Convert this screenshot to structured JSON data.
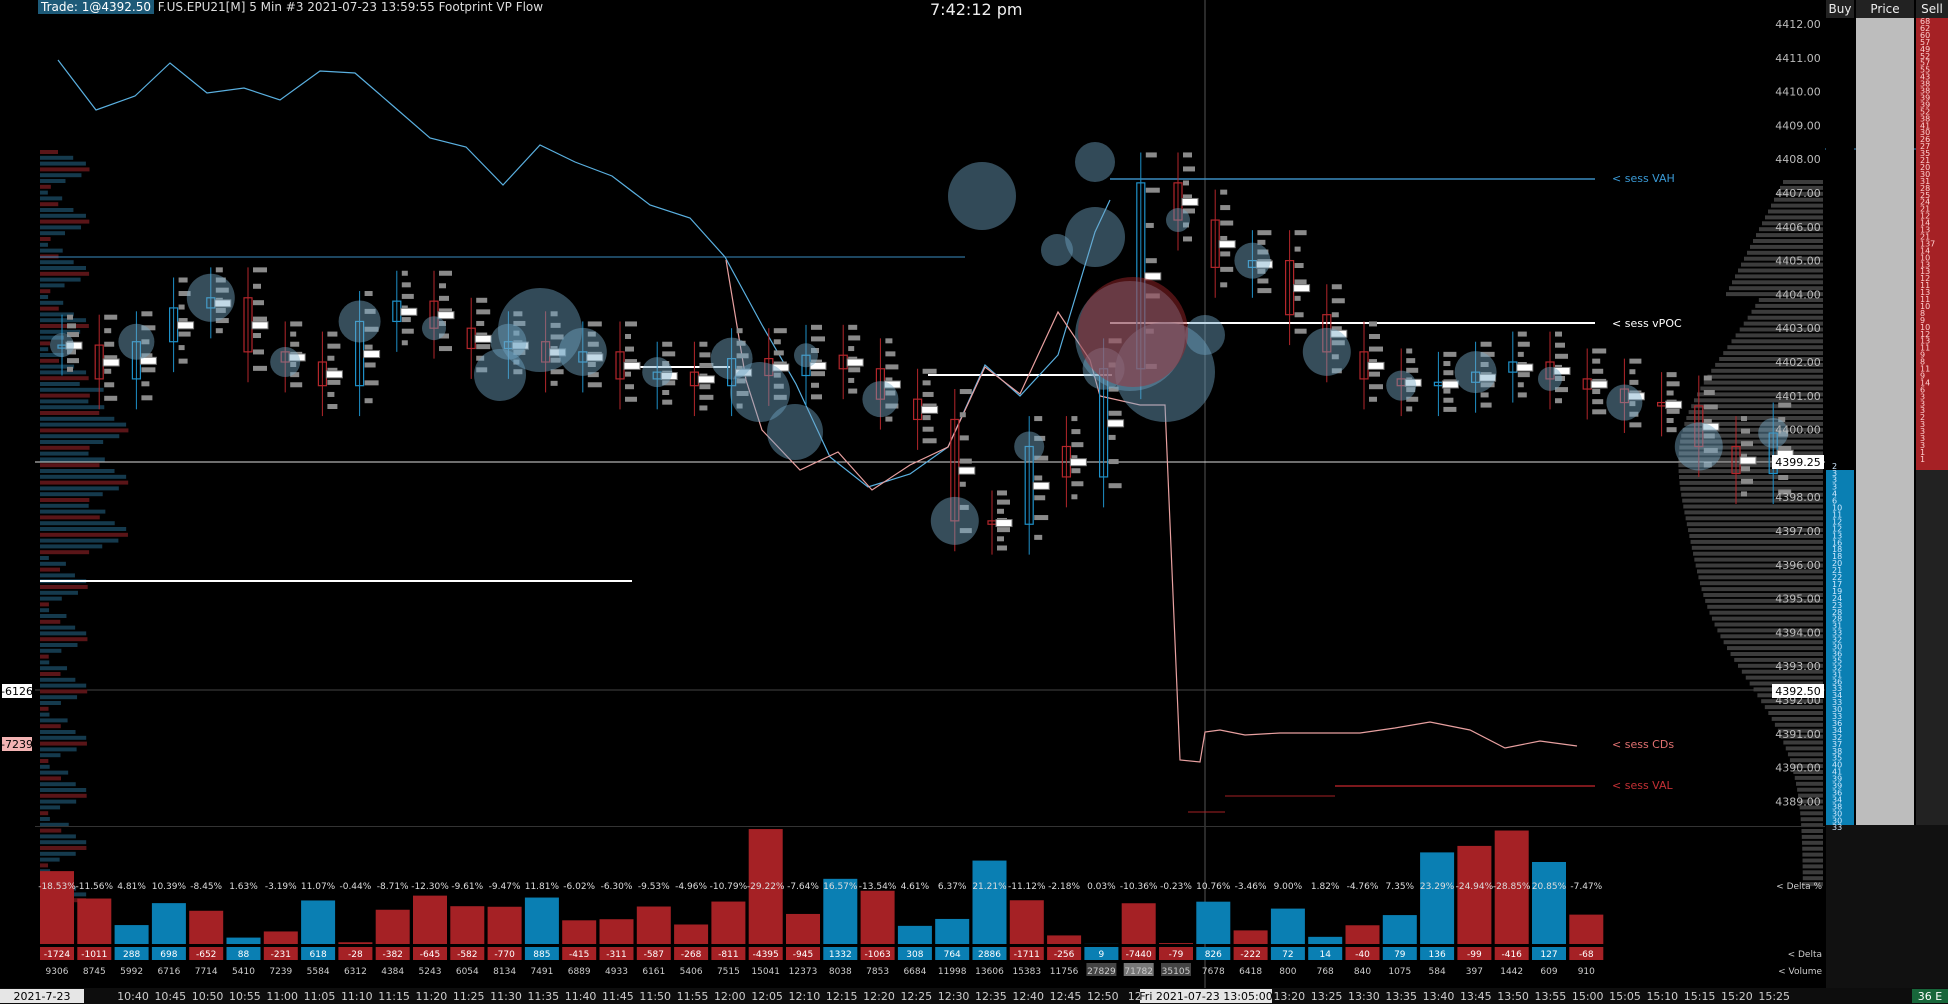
{
  "header": {
    "trade": "Trade: 1@4392.50",
    "symbol": "F.US.EPU21[M]",
    "interval": "5 Min",
    "info": "#3 2021-07-23 13:59:55 Footprint VP Flow",
    "clock": "7:42:12 pm"
  },
  "dom": {
    "buy_label": "Buy",
    "price_label": "Price",
    "sell_label": "Sell"
  },
  "colors": {
    "buy": "#0a7fb3",
    "sell": "#a52125",
    "bg": "#000000",
    "line_blue": "#5ab0e0",
    "line_pink": "#e8a0a0"
  },
  "price_axis": {
    "labels": [
      "4412.00",
      "4411.00",
      "4410.00",
      "4409.00",
      "4408.00",
      "4407.00",
      "4406.00",
      "4405.00",
      "4404.00",
      "4403.00",
      "4402.00",
      "4401.00",
      "4400.00",
      "4399.00",
      "4398.00",
      "4397.00",
      "4396.00",
      "4395.00",
      "4394.00",
      "4393.00",
      "4392.00",
      "4391.00",
      "4390.00",
      "4389.00"
    ],
    "current": "4399.25",
    "last": "4392.50"
  },
  "levels": {
    "vah": "< sess VAH",
    "vpoc": "< sess vPOC",
    "cds": "< sess CDs",
    "val": "< sess VAL"
  },
  "left_badges": {
    "b1": "-6126",
    "b2": "-7239"
  },
  "row_labels": {
    "delta_pct": "< Delta %",
    "delta": "< Delta",
    "volume": "< Volume"
  },
  "bars": {
    "delta_pct": [
      "-18.53%",
      "-11.56%",
      "4.81%",
      "10.39%",
      "-8.45%",
      "1.63%",
      "-3.19%",
      "11.07%",
      "-0.44%",
      "-8.71%",
      "-12.30%",
      "-9.61%",
      "-9.47%",
      "11.81%",
      "-6.02%",
      "-6.30%",
      "-9.53%",
      "-4.96%",
      "-10.79%",
      "-29.22%",
      "-7.64%",
      "16.57%",
      "-13.54%",
      "4.61%",
      "6.37%",
      "21.21%",
      "-11.12%",
      "-2.18%",
      "0.03%",
      "-10.36%",
      "-0.23%",
      "10.76%",
      "-3.46%",
      "9.00%",
      "1.82%",
      "-4.76%",
      "7.35%",
      "23.29%",
      "-24.94%",
      "-28.85%",
      "20.85%",
      "-7.47%"
    ],
    "delta": [
      "-1724",
      "-1011",
      "288",
      "698",
      "-652",
      "88",
      "-231",
      "618",
      "-28",
      "-382",
      "-645",
      "-582",
      "-770",
      "885",
      "-415",
      "-311",
      "-587",
      "-268",
      "-811",
      "-4395",
      "-945",
      "1332",
      "-1063",
      "308",
      "764",
      "2886",
      "-1711",
      "-256",
      "9",
      "-7440",
      "-79",
      "826",
      "-222",
      "72",
      "14",
      "-40",
      "79",
      "136",
      "-99",
      "-416",
      "127",
      "-68"
    ],
    "volume": [
      "9306",
      "8745",
      "5992",
      "6716",
      "7714",
      "5410",
      "7239",
      "5584",
      "6312",
      "4384",
      "5243",
      "6054",
      "8134",
      "7491",
      "6889",
      "4933",
      "6161",
      "5406",
      "7515",
      "15041",
      "12373",
      "8038",
      "7853",
      "6684",
      "11998",
      "13606",
      "15383",
      "11756",
      "27829",
      "71782",
      "35105",
      "7678",
      "6418",
      "800",
      "768",
      "840",
      "1075",
      "584",
      "397",
      "1442",
      "609",
      "910"
    ]
  },
  "time_axis": {
    "labels": [
      "10:40",
      "10:45",
      "10:50",
      "10:55",
      "11:00",
      "11:05",
      "11:10",
      "11:15",
      "11:20",
      "11:25",
      "11:30",
      "11:35",
      "11:40",
      "11:45",
      "11:50",
      "11:55",
      "12:00",
      "12:05",
      "12:10",
      "12:15",
      "12:20",
      "12:25",
      "12:30",
      "12:35",
      "12:40",
      "12:45",
      "12:50",
      "12:5",
      "",
      "",
      "13:15",
      "13:20",
      "13:25",
      "13:30",
      "13:35",
      "13:40",
      "13:45",
      "13:50",
      "13:55",
      "15:00",
      "15:05",
      "15:10",
      "15:15",
      "15:20",
      "15:25"
    ],
    "date_left": "2021-7-23",
    "cursor_label": "Fri 2021-07-23  13:05:00",
    "bottom_right": "36 E"
  },
  "dom_volumes": [
    "68",
    "62",
    "60",
    "57",
    "49",
    "52",
    "57",
    "55",
    "43",
    "38",
    "38",
    "39",
    "39",
    "52",
    "38",
    "41",
    "30",
    "26",
    "27",
    "35",
    "21",
    "20",
    "30",
    "31",
    "28",
    "25",
    "24",
    "21",
    "12",
    "14",
    "13",
    "21",
    "137",
    "14",
    "10",
    "13",
    "13",
    "12",
    "11",
    "13",
    "11",
    "10",
    "8",
    "9",
    "10",
    "12",
    "13",
    "11",
    "9",
    "8",
    "11",
    "9",
    "14",
    "6",
    "3",
    "3",
    "3",
    "2",
    "3",
    "3",
    "3",
    "3",
    "1",
    "1",
    "2",
    "3",
    "3",
    "3",
    "4",
    "6",
    "10",
    "11",
    "12",
    "12",
    "13",
    "16",
    "18",
    "18",
    "20",
    "21",
    "22",
    "17",
    "19",
    "24",
    "23",
    "28",
    "28",
    "31",
    "33",
    "32",
    "30",
    "36",
    "35",
    "32",
    "31",
    "36",
    "33",
    "34",
    "33",
    "30",
    "33",
    "36",
    "34",
    "32",
    "37",
    "38",
    "35",
    "40",
    "41",
    "39",
    "39",
    "36",
    "34",
    "38",
    "30",
    "30",
    "33"
  ]
}
